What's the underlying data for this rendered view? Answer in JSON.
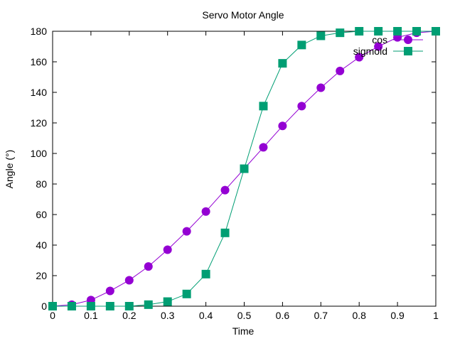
{
  "chart_data": {
    "type": "line",
    "title": "Servo Motor Angle",
    "xlabel": "Time",
    "ylabel": "Angle (°)",
    "xlim": [
      0,
      1
    ],
    "ylim": [
      0,
      180
    ],
    "xticks": [
      "0",
      "0.1",
      "0.2",
      "0.3",
      "0.4",
      "0.5",
      "0.6",
      "0.7",
      "0.8",
      "0.9",
      "1"
    ],
    "yticks": [
      "0",
      "20",
      "40",
      "60",
      "80",
      "100",
      "120",
      "140",
      "160",
      "180"
    ],
    "grid": false,
    "legend_position": "top-right",
    "x": [
      0,
      0.05,
      0.1,
      0.15,
      0.2,
      0.25,
      0.3,
      0.35,
      0.4,
      0.45,
      0.5,
      0.55,
      0.6,
      0.65,
      0.7,
      0.75,
      0.8,
      0.85,
      0.9,
      0.95,
      1
    ],
    "series": [
      {
        "name": "cos",
        "color": "#9400d3",
        "marker": "circle",
        "values": [
          0,
          1,
          4,
          10,
          17,
          26,
          37,
          49,
          62,
          76,
          90,
          104,
          118,
          131,
          143,
          154,
          163,
          170,
          176,
          179,
          180
        ]
      },
      {
        "name": "sigmoid",
        "color": "#009e73",
        "marker": "square",
        "values": [
          0,
          0,
          0,
          0,
          0,
          1,
          3,
          8,
          21,
          48,
          90,
          131,
          159,
          171,
          177,
          179,
          180,
          180,
          180,
          180,
          180
        ]
      }
    ]
  }
}
